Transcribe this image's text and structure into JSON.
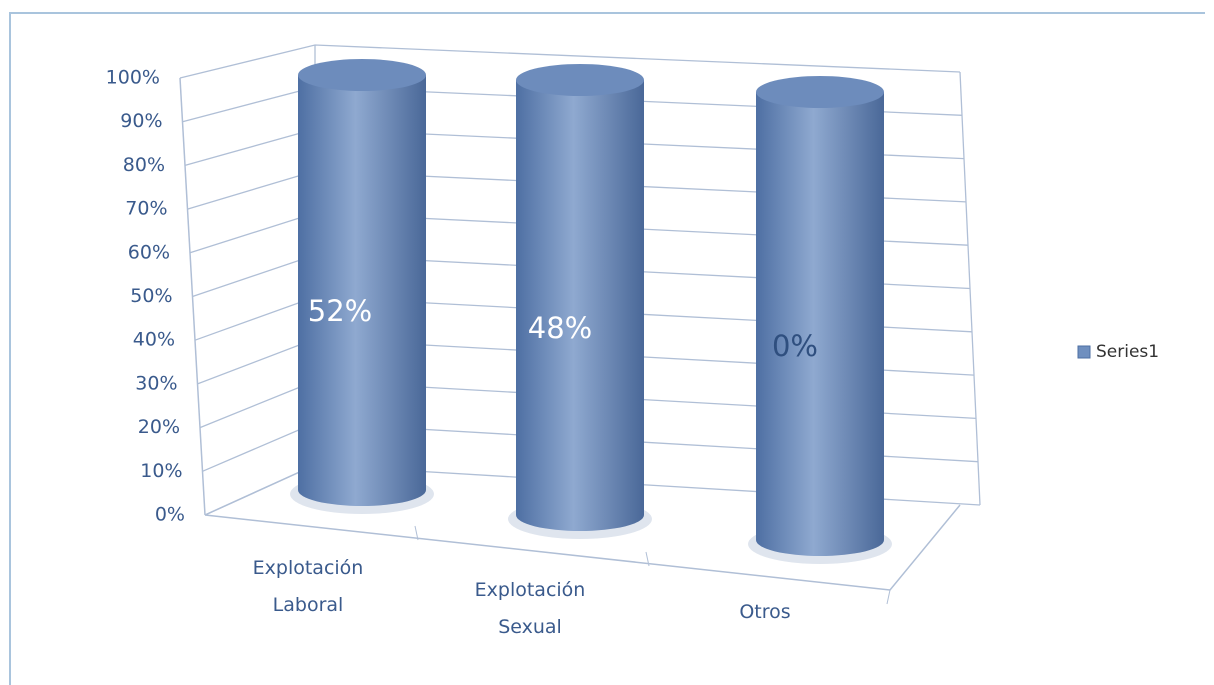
{
  "chart_data": {
    "type": "cylinder_100_stacked",
    "categories": [
      "Explotación Laboral",
      "Explotación Sexual",
      "Otros"
    ],
    "series": [
      {
        "name": "Series1",
        "color": "#6f8fbf",
        "values": [
          52,
          48,
          0
        ],
        "value_labels": [
          "52%",
          "48%",
          "0%"
        ]
      }
    ],
    "ylim": [
      0,
      100
    ],
    "yticks": [
      {
        "value": 0,
        "label": "0%"
      },
      {
        "value": 10,
        "label": "10%"
      },
      {
        "value": 20,
        "label": "20%"
      },
      {
        "value": 30,
        "label": "30%"
      },
      {
        "value": 40,
        "label": "40%"
      },
      {
        "value": 50,
        "label": "50%"
      },
      {
        "value": 60,
        "label": "60%"
      },
      {
        "value": 70,
        "label": "70%"
      },
      {
        "value": 80,
        "label": "80%"
      },
      {
        "value": 90,
        "label": "90%"
      },
      {
        "value": 100,
        "label": "100%"
      }
    ],
    "grid": true,
    "legend": "right"
  }
}
